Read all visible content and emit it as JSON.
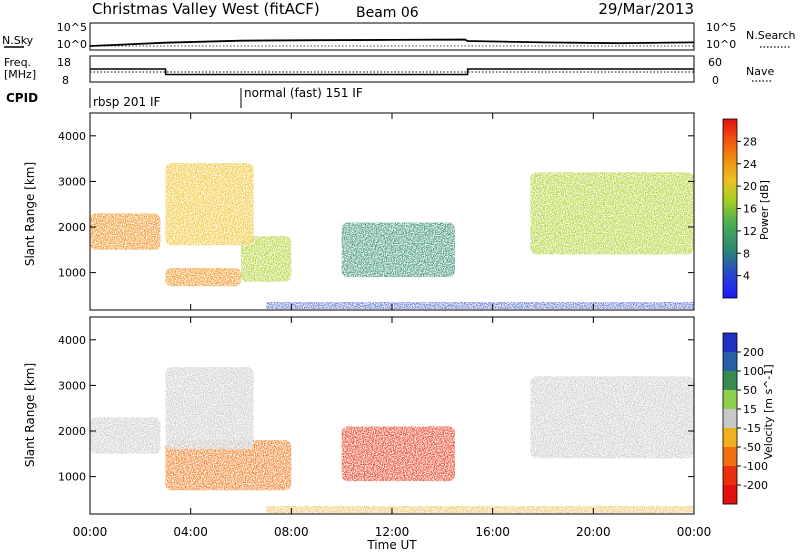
{
  "header": {
    "station": "Christmas Valley West (fitACF)",
    "beam": "Beam 06",
    "date": "29/Mar/2013"
  },
  "noise_panel": {
    "left_label": "N.Sky",
    "right_label": "N.Search",
    "left_ticks": [
      "10^5",
      "10^0"
    ],
    "right_ticks": [
      "10^5",
      "10^0"
    ]
  },
  "freq_panel": {
    "left_label_1": "Freq.",
    "left_label_2": "[MHz]",
    "right_label": "Nave",
    "left_ticks": [
      "18",
      "8"
    ],
    "right_ticks": [
      "60",
      "0"
    ]
  },
  "cpid": {
    "label": "CPID",
    "segments": [
      {
        "start_hour": 0,
        "name": "rbsp 201 IF"
      },
      {
        "start_hour": 6,
        "name": "normal (fast) 151 IF"
      }
    ]
  },
  "time_axis": {
    "label": "Time UT",
    "ticks": [
      "00:00",
      "04:00",
      "08:00",
      "12:00",
      "16:00",
      "20:00",
      "00:00"
    ],
    "range_hours": [
      0,
      24
    ]
  },
  "chart_data": [
    {
      "type": "line",
      "title": "",
      "xlabel": "",
      "ylabel": "N.Sky",
      "yscale": "log",
      "ylim": [
        1,
        100000
      ],
      "x": [
        0,
        3,
        6,
        9,
        12,
        14.9,
        15,
        18,
        21,
        24
      ],
      "series": [
        {
          "name": "N.Sky",
          "values": [
            1,
            15,
            80,
            120,
            150,
            200,
            60,
            20,
            10,
            20
          ]
        }
      ]
    },
    {
      "type": "line",
      "title": "",
      "xlabel": "",
      "ylabel": "Freq. [MHz]",
      "ylim": [
        8,
        18
      ],
      "x": [
        0,
        3,
        3.01,
        15,
        15.01,
        24
      ],
      "series": [
        {
          "name": "Freq.",
          "values": [
            13,
            13,
            10.5,
            10.5,
            13,
            13
          ]
        }
      ]
    },
    {
      "type": "heatmap",
      "title": "",
      "xlabel": "",
      "ylabel": "Slant Range [km]",
      "xlim": [
        0,
        24
      ],
      "ylim": [
        180,
        4500
      ],
      "yticks": [
        1000,
        2000,
        3000,
        4000
      ],
      "colorbar": {
        "label": "Power [dB]",
        "ticks": [
          4,
          8,
          12,
          16,
          20,
          24,
          28
        ],
        "range": [
          0,
          32
        ]
      },
      "features": [
        {
          "hours": [
            0,
            2.8
          ],
          "range_km": [
            1500,
            2300
          ],
          "power_db": 26
        },
        {
          "hours": [
            3,
            6
          ],
          "range_km": [
            700,
            1100
          ],
          "power_db": 25
        },
        {
          "hours": [
            6,
            8
          ],
          "range_km": [
            800,
            1800
          ],
          "power_db": 18
        },
        {
          "hours": [
            3,
            6.5
          ],
          "range_km": [
            1600,
            3400
          ],
          "power_db": 22
        },
        {
          "hours": [
            10,
            14.5
          ],
          "range_km": [
            900,
            2100
          ],
          "power_db": 12
        },
        {
          "hours": [
            17.5,
            24
          ],
          "range_km": [
            1400,
            3200
          ],
          "power_db": 17
        }
      ]
    },
    {
      "type": "heatmap",
      "title": "",
      "xlabel": "Time UT",
      "ylabel": "Slant Range [km]",
      "xlim": [
        0,
        24
      ],
      "ylim": [
        180,
        4500
      ],
      "yticks": [
        1000,
        2000,
        3000,
        4000
      ],
      "colorbar": {
        "label": "Velocity [m s^-1]",
        "ticks": [
          200,
          100,
          50,
          15,
          -15,
          -50,
          -100,
          -200
        ],
        "range": [
          -250,
          250
        ]
      },
      "features": [
        {
          "hours": [
            0,
            2.8
          ],
          "range_km": [
            1500,
            2300
          ],
          "velocity_ms": 0
        },
        {
          "hours": [
            3,
            8
          ],
          "range_km": [
            700,
            1800
          ],
          "velocity_ms": -70
        },
        {
          "hours": [
            3,
            6.5
          ],
          "range_km": [
            1600,
            3400
          ],
          "velocity_ms": -10
        },
        {
          "hours": [
            10,
            14.5
          ],
          "range_km": [
            900,
            2100
          ],
          "velocity_ms": -120
        },
        {
          "hours": [
            17.5,
            24
          ],
          "range_km": [
            1400,
            3200
          ],
          "velocity_ms": 0
        }
      ]
    }
  ]
}
